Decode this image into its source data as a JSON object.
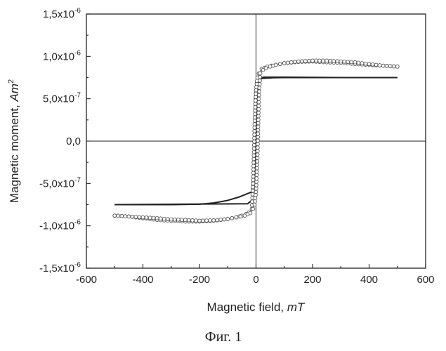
{
  "chart_data": {
    "type": "line",
    "xlabel": "Magnetic field, ",
    "xlabel_unit": "mT",
    "ylabel": "Magnetic moment, ",
    "ylabel_unit": "Am",
    "ylabel_unit_exp": "2",
    "xlim": [
      -600,
      600
    ],
    "ylim": [
      -1.5e-06,
      1.5e-06
    ],
    "x_ticks": [
      -600,
      -400,
      -200,
      0,
      200,
      400,
      600
    ],
    "x_tick_labels": [
      "-600",
      "-400",
      "-200",
      "0",
      "200",
      "400",
      "600"
    ],
    "y_ticks": [
      1.5e-06,
      1e-06,
      5e-07,
      0,
      -5e-07,
      -1e-06,
      -1.5e-06
    ],
    "y_tick_labels": [
      {
        "base": "1,5x10",
        "exp": "-6"
      },
      {
        "base": "1,0x10",
        "exp": "-6"
      },
      {
        "base": "5,0x10",
        "exp": "-7"
      },
      {
        "base": "0,0",
        "exp": ""
      },
      {
        "base": "-5,0x10",
        "exp": "-7"
      },
      {
        "base": "-1,0x10",
        "exp": "-6"
      },
      {
        "base": "-1,5x10",
        "exp": "-6"
      }
    ],
    "zero_lines": true,
    "grid": false,
    "series": [
      {
        "style": "solid",
        "color": "#222222",
        "x": [
          -500,
          -300,
          -200,
          -150,
          -100,
          -60,
          -30,
          -15,
          -10,
          -5,
          0,
          5,
          10,
          15,
          30,
          100,
          300,
          500
        ],
        "y": [
          -7.5e-07,
          -7.5e-07,
          -7.45e-07,
          -7.3e-07,
          -7e-07,
          -6.6e-07,
          -6.2e-07,
          -6e-07,
          -3e-07,
          5e-07,
          7.2e-07,
          7.45e-07,
          7.5e-07,
          7.5e-07,
          7.55e-07,
          7.55e-07,
          7.5e-07,
          7.5e-07
        ]
      },
      {
        "style": "solid",
        "color": "#222222",
        "x": [
          -500,
          -30,
          -15,
          -5,
          0,
          5,
          10,
          15,
          20,
          60,
          100,
          200,
          300,
          400,
          500
        ],
        "y": [
          -7.5e-07,
          -7.4e-07,
          -7e-07,
          -4e-07,
          0,
          5e-07,
          7e-07,
          7.3e-07,
          7.4e-07,
          7.48e-07,
          7.5e-07,
          7.5e-07,
          7.5e-07,
          7.5e-07,
          7.5e-07
        ]
      },
      {
        "style": "open-circles",
        "color": "#555555",
        "x": [
          -500,
          -450,
          -400,
          -350,
          -300,
          -250,
          -200,
          -150,
          -100,
          -70,
          -50,
          -35,
          -25,
          -15,
          -10,
          -5,
          0,
          5,
          10,
          20,
          40,
          70,
          100,
          150,
          200,
          250,
          300,
          350,
          400,
          450,
          500
        ],
        "y": [
          -8.8e-07,
          -8.9e-07,
          -9.1e-07,
          -9.3e-07,
          -9.4e-07,
          -9.5e-07,
          -9.5e-07,
          -9.4e-07,
          -9.2e-07,
          -9e-07,
          -8.8e-07,
          -8.6e-07,
          -8.4e-07,
          -8e-07,
          -5e-07,
          2e-07,
          6e-07,
          7.5e-07,
          8e-07,
          8.5e-07,
          8.8e-07,
          9e-07,
          9.2e-07,
          9.35e-07,
          9.4e-07,
          9.3e-07,
          9.25e-07,
          9.1e-07,
          9e-07,
          8.9e-07,
          8.8e-07
        ]
      },
      {
        "style": "open-circles",
        "color": "#555555",
        "x": [
          500,
          450,
          400,
          350,
          300,
          250,
          200,
          150,
          100,
          70,
          50,
          35,
          25,
          15,
          10,
          5,
          0,
          -5,
          -10,
          -20,
          -40,
          -70,
          -100,
          -150,
          -200,
          -250,
          -300,
          -350,
          -400,
          -450,
          -500
        ],
        "y": [
          8.8e-07,
          8.9e-07,
          9.1e-07,
          9.3e-07,
          9.4e-07,
          9.5e-07,
          9.5e-07,
          9.4e-07,
          9.2e-07,
          9e-07,
          8.8e-07,
          8.6e-07,
          8.4e-07,
          8e-07,
          5e-07,
          -2e-07,
          -6e-07,
          -7.5e-07,
          -8e-07,
          -8.5e-07,
          -8.8e-07,
          -9e-07,
          -9.2e-07,
          -9.35e-07,
          -9.4e-07,
          -9.3e-07,
          -9.25e-07,
          -9.1e-07,
          -9e-07,
          -8.9e-07,
          -8.8e-07
        ]
      }
    ]
  },
  "caption": "Фиг. 1"
}
